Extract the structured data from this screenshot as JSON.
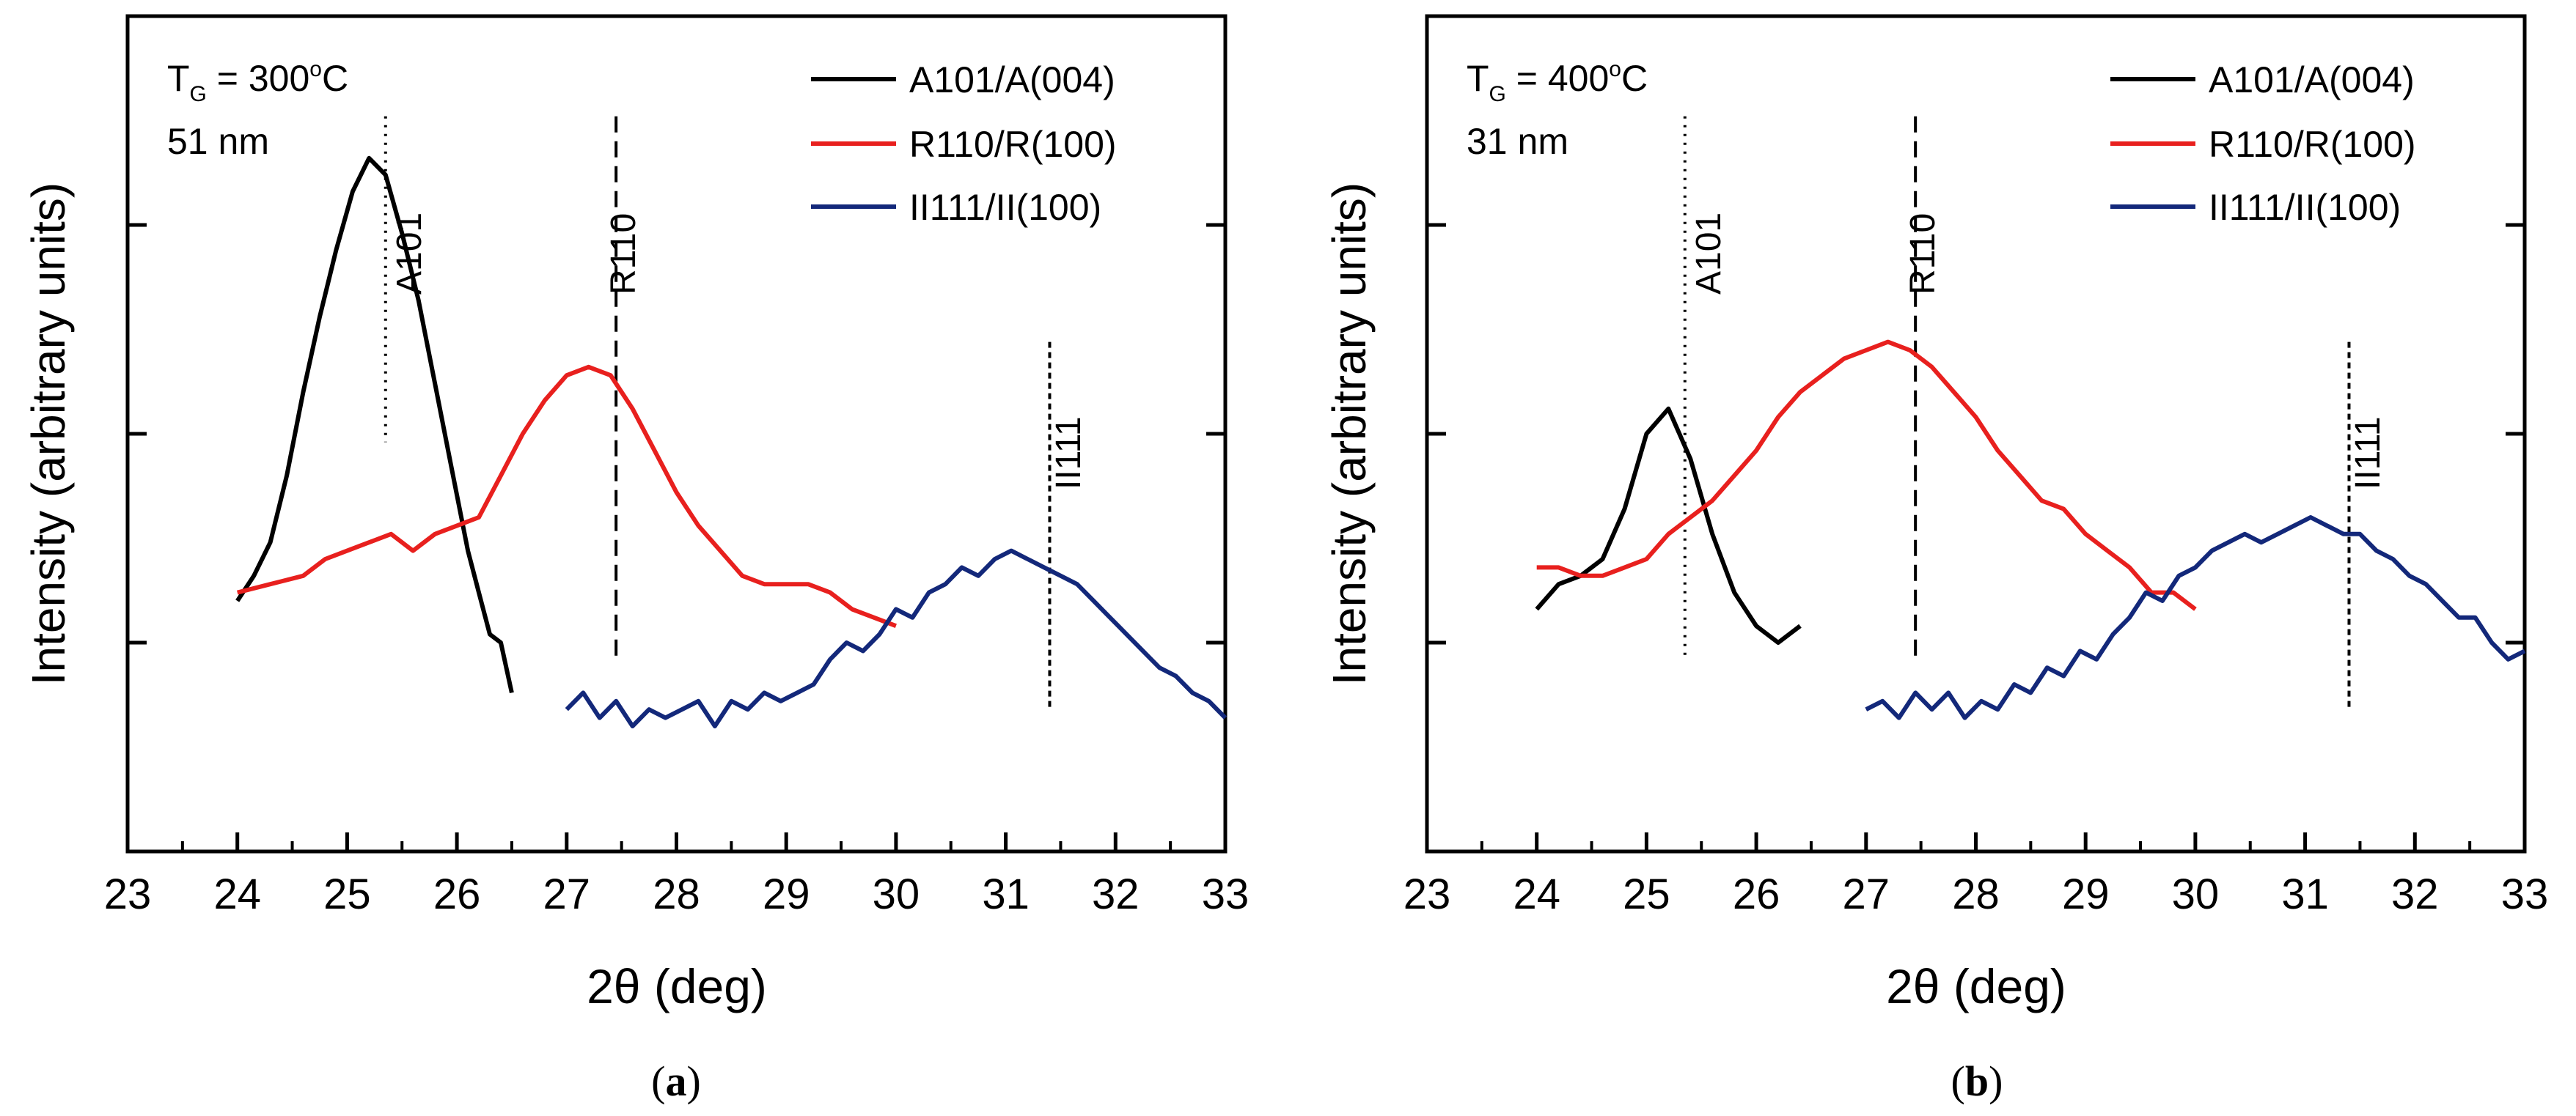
{
  "chart_data": [
    {
      "type": "line",
      "panel_label": "a",
      "xlabel": "2θ (deg)",
      "ylabel": "Intensity (arbitrary units)",
      "xlim": [
        23,
        33
      ],
      "ylim": [
        0,
        1
      ],
      "xticks": [
        "23",
        "24",
        "25",
        "26",
        "27",
        "28",
        "29",
        "30",
        "31",
        "32",
        "33"
      ],
      "annotation": {
        "prefix": "T",
        "subscript": "G",
        "middle": " = 300",
        "superscript": "o",
        "suffix": "C",
        "thickness": "51 nm"
      },
      "legend": [
        "A101/A(004)",
        "R110/R(100)",
        "II111/II(100)"
      ],
      "series": [
        {
          "name": "A101/A(004)",
          "color": "#000000",
          "x": [
            24.0,
            24.15,
            24.3,
            24.45,
            24.6,
            24.75,
            24.9,
            25.05,
            25.2,
            25.35,
            25.5,
            25.65,
            25.8,
            25.95,
            26.1,
            26.2,
            26.3,
            26.4,
            26.5
          ],
          "y": [
            0.3,
            0.33,
            0.37,
            0.45,
            0.55,
            0.64,
            0.72,
            0.79,
            0.83,
            0.81,
            0.74,
            0.66,
            0.56,
            0.46,
            0.36,
            0.31,
            0.26,
            0.25,
            0.19
          ]
        },
        {
          "name": "R110/R(100)",
          "color": "#e8201e",
          "x": [
            24.0,
            24.3,
            24.6,
            24.8,
            25.0,
            25.2,
            25.4,
            25.6,
            25.8,
            26.0,
            26.2,
            26.4,
            26.6,
            26.8,
            27.0,
            27.2,
            27.4,
            27.6,
            27.8,
            28.0,
            28.2,
            28.4,
            28.6,
            28.8,
            29.0,
            29.2,
            29.4,
            29.6,
            29.8,
            30.0
          ],
          "y": [
            0.31,
            0.32,
            0.33,
            0.35,
            0.36,
            0.37,
            0.38,
            0.36,
            0.38,
            0.39,
            0.4,
            0.45,
            0.5,
            0.54,
            0.57,
            0.58,
            0.57,
            0.53,
            0.48,
            0.43,
            0.39,
            0.36,
            0.33,
            0.32,
            0.32,
            0.32,
            0.31,
            0.29,
            0.28,
            0.27
          ]
        },
        {
          "name": "II111/II(100)",
          "color": "#13287a",
          "x": [
            27.0,
            27.15,
            27.3,
            27.45,
            27.6,
            27.75,
            27.9,
            28.05,
            28.2,
            28.35,
            28.5,
            28.65,
            28.8,
            28.95,
            29.1,
            29.25,
            29.4,
            29.55,
            29.7,
            29.85,
            30.0,
            30.15,
            30.3,
            30.45,
            30.6,
            30.75,
            30.9,
            31.05,
            31.2,
            31.35,
            31.5,
            31.65,
            31.8,
            31.95,
            32.1,
            32.25,
            32.4,
            32.55,
            32.7,
            32.85,
            33.0
          ],
          "y": [
            0.17,
            0.19,
            0.16,
            0.18,
            0.15,
            0.17,
            0.16,
            0.17,
            0.18,
            0.15,
            0.18,
            0.17,
            0.19,
            0.18,
            0.19,
            0.2,
            0.23,
            0.25,
            0.24,
            0.26,
            0.29,
            0.28,
            0.31,
            0.32,
            0.34,
            0.33,
            0.35,
            0.36,
            0.35,
            0.34,
            0.33,
            0.32,
            0.3,
            0.28,
            0.26,
            0.24,
            0.22,
            0.21,
            0.19,
            0.18,
            0.16
          ]
        }
      ],
      "reference_lines": [
        {
          "label": "A101",
          "x": 25.35,
          "y_top": 0.88,
          "y_bottom": 0.49,
          "style": "dotted"
        },
        {
          "label": "R110",
          "x": 27.45,
          "y_top": 0.88,
          "y_bottom": 0.23,
          "style": "dashed"
        },
        {
          "label": "II111",
          "x": 31.4,
          "y_top": 0.61,
          "y_bottom": 0.17,
          "style": "dashed-fine"
        }
      ]
    },
    {
      "type": "line",
      "panel_label": "b",
      "xlabel": "2θ (deg)",
      "ylabel": "Intensity (arbitrary units)",
      "xlim": [
        23,
        33
      ],
      "ylim": [
        0,
        1
      ],
      "xticks": [
        "23",
        "24",
        "25",
        "26",
        "27",
        "28",
        "29",
        "30",
        "31",
        "32",
        "33"
      ],
      "annotation": {
        "prefix": "T",
        "subscript": "G",
        "middle": " = 400",
        "superscript": "o",
        "suffix": "C",
        "thickness": "31 nm"
      },
      "legend": [
        "A101/A(004)",
        "R110/R(100)",
        "II111/II(100)"
      ],
      "series": [
        {
          "name": "A101/A(004)",
          "color": "#000000",
          "x": [
            24.0,
            24.2,
            24.4,
            24.6,
            24.8,
            25.0,
            25.2,
            25.4,
            25.6,
            25.8,
            26.0,
            26.2,
            26.4
          ],
          "y": [
            0.29,
            0.32,
            0.33,
            0.35,
            0.41,
            0.5,
            0.53,
            0.47,
            0.38,
            0.31,
            0.27,
            0.25,
            0.27
          ]
        },
        {
          "name": "R110/R(100)",
          "color": "#e8201e",
          "x": [
            24.0,
            24.2,
            24.4,
            24.6,
            24.8,
            25.0,
            25.2,
            25.4,
            25.6,
            25.8,
            26.0,
            26.2,
            26.4,
            26.6,
            26.8,
            27.0,
            27.2,
            27.4,
            27.6,
            27.8,
            28.0,
            28.2,
            28.4,
            28.6,
            28.8,
            29.0,
            29.2,
            29.4,
            29.6,
            29.8,
            30.0
          ],
          "y": [
            0.34,
            0.34,
            0.33,
            0.33,
            0.34,
            0.35,
            0.38,
            0.4,
            0.42,
            0.45,
            0.48,
            0.52,
            0.55,
            0.57,
            0.59,
            0.6,
            0.61,
            0.6,
            0.58,
            0.55,
            0.52,
            0.48,
            0.45,
            0.42,
            0.41,
            0.38,
            0.36,
            0.34,
            0.31,
            0.31,
            0.29
          ]
        },
        {
          "name": "II111/II(100)",
          "color": "#13287a",
          "x": [
            27.0,
            27.15,
            27.3,
            27.45,
            27.6,
            27.75,
            27.9,
            28.05,
            28.2,
            28.35,
            28.5,
            28.65,
            28.8,
            28.95,
            29.1,
            29.25,
            29.4,
            29.55,
            29.7,
            29.85,
            30.0,
            30.15,
            30.3,
            30.45,
            30.6,
            30.75,
            30.9,
            31.05,
            31.2,
            31.35,
            31.5,
            31.65,
            31.8,
            31.95,
            32.1,
            32.25,
            32.4,
            32.55,
            32.7,
            32.85,
            33.0
          ],
          "y": [
            0.17,
            0.18,
            0.16,
            0.19,
            0.17,
            0.19,
            0.16,
            0.18,
            0.17,
            0.2,
            0.19,
            0.22,
            0.21,
            0.24,
            0.23,
            0.26,
            0.28,
            0.31,
            0.3,
            0.33,
            0.34,
            0.36,
            0.37,
            0.38,
            0.37,
            0.38,
            0.39,
            0.4,
            0.39,
            0.38,
            0.38,
            0.36,
            0.35,
            0.33,
            0.32,
            0.3,
            0.28,
            0.28,
            0.25,
            0.23,
            0.24
          ]
        }
      ],
      "reference_lines": [
        {
          "label": "A101",
          "x": 25.35,
          "y_top": 0.88,
          "y_bottom": 0.23,
          "style": "dotted"
        },
        {
          "label": "R110",
          "x": 27.45,
          "y_top": 0.88,
          "y_bottom": 0.23,
          "style": "dashed"
        },
        {
          "label": "II111",
          "x": 31.4,
          "y_top": 0.61,
          "y_bottom": 0.17,
          "style": "dashed-fine"
        }
      ]
    }
  ]
}
